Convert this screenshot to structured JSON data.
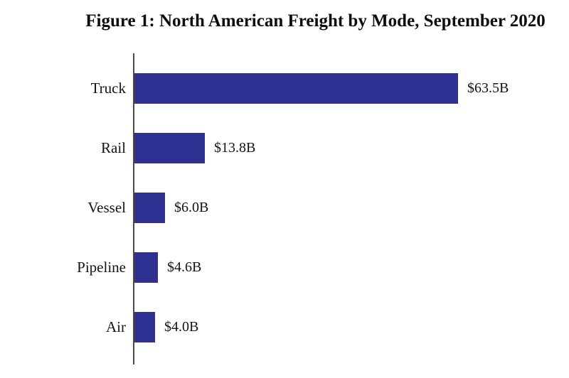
{
  "chart_data": {
    "type": "bar",
    "orientation": "horizontal",
    "title": "Figure 1: North American Freight by Mode, September 2020",
    "categories": [
      "Truck",
      "Rail",
      "Vessel",
      "Pipeline",
      "Air"
    ],
    "values": [
      63.5,
      13.8,
      6.0,
      4.6,
      4.0
    ],
    "value_labels": [
      "$63.5B",
      "$13.8B",
      "$6.0B",
      "$4.6B",
      "$4.0B"
    ],
    "xlabel": "",
    "ylabel": "",
    "xlim": [
      0,
      70
    ],
    "grid": false,
    "legend": false,
    "bar_color": "#2E3192",
    "axis_color": "#4a4a4a",
    "text_color": "#141414"
  }
}
